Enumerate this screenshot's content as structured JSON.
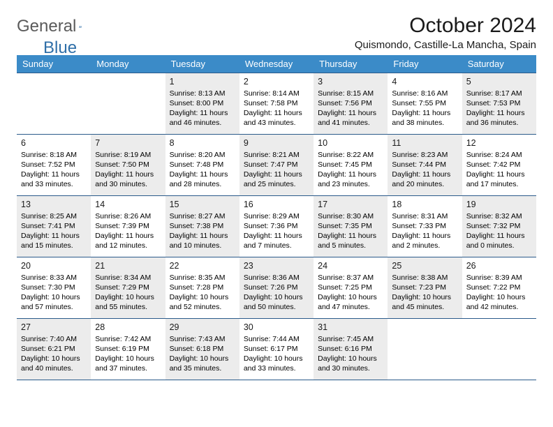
{
  "logo": {
    "part1": "General",
    "part2": "Blue"
  },
  "title": "October 2024",
  "location": "Quismondo, Castille-La Mancha, Spain",
  "colors": {
    "header_bg": "#3b8bc8",
    "header_text": "#ffffff",
    "border": "#2a5a8a",
    "shaded_bg": "#ececec",
    "logo_gray": "#5a5a5a",
    "logo_blue": "#2f6fa8"
  },
  "dayHeaders": [
    "Sunday",
    "Monday",
    "Tuesday",
    "Wednesday",
    "Thursday",
    "Friday",
    "Saturday"
  ],
  "weeks": [
    [
      {
        "num": "",
        "sunrise": "",
        "sunset": "",
        "daylight": "",
        "shaded": false
      },
      {
        "num": "",
        "sunrise": "",
        "sunset": "",
        "daylight": "",
        "shaded": false
      },
      {
        "num": "1",
        "sunrise": "Sunrise: 8:13 AM",
        "sunset": "Sunset: 8:00 PM",
        "daylight": "Daylight: 11 hours and 46 minutes.",
        "shaded": true
      },
      {
        "num": "2",
        "sunrise": "Sunrise: 8:14 AM",
        "sunset": "Sunset: 7:58 PM",
        "daylight": "Daylight: 11 hours and 43 minutes.",
        "shaded": false
      },
      {
        "num": "3",
        "sunrise": "Sunrise: 8:15 AM",
        "sunset": "Sunset: 7:56 PM",
        "daylight": "Daylight: 11 hours and 41 minutes.",
        "shaded": true
      },
      {
        "num": "4",
        "sunrise": "Sunrise: 8:16 AM",
        "sunset": "Sunset: 7:55 PM",
        "daylight": "Daylight: 11 hours and 38 minutes.",
        "shaded": false
      },
      {
        "num": "5",
        "sunrise": "Sunrise: 8:17 AM",
        "sunset": "Sunset: 7:53 PM",
        "daylight": "Daylight: 11 hours and 36 minutes.",
        "shaded": true
      }
    ],
    [
      {
        "num": "6",
        "sunrise": "Sunrise: 8:18 AM",
        "sunset": "Sunset: 7:52 PM",
        "daylight": "Daylight: 11 hours and 33 minutes.",
        "shaded": false
      },
      {
        "num": "7",
        "sunrise": "Sunrise: 8:19 AM",
        "sunset": "Sunset: 7:50 PM",
        "daylight": "Daylight: 11 hours and 30 minutes.",
        "shaded": true
      },
      {
        "num": "8",
        "sunrise": "Sunrise: 8:20 AM",
        "sunset": "Sunset: 7:48 PM",
        "daylight": "Daylight: 11 hours and 28 minutes.",
        "shaded": false
      },
      {
        "num": "9",
        "sunrise": "Sunrise: 8:21 AM",
        "sunset": "Sunset: 7:47 PM",
        "daylight": "Daylight: 11 hours and 25 minutes.",
        "shaded": true
      },
      {
        "num": "10",
        "sunrise": "Sunrise: 8:22 AM",
        "sunset": "Sunset: 7:45 PM",
        "daylight": "Daylight: 11 hours and 23 minutes.",
        "shaded": false
      },
      {
        "num": "11",
        "sunrise": "Sunrise: 8:23 AM",
        "sunset": "Sunset: 7:44 PM",
        "daylight": "Daylight: 11 hours and 20 minutes.",
        "shaded": true
      },
      {
        "num": "12",
        "sunrise": "Sunrise: 8:24 AM",
        "sunset": "Sunset: 7:42 PM",
        "daylight": "Daylight: 11 hours and 17 minutes.",
        "shaded": false
      }
    ],
    [
      {
        "num": "13",
        "sunrise": "Sunrise: 8:25 AM",
        "sunset": "Sunset: 7:41 PM",
        "daylight": "Daylight: 11 hours and 15 minutes.",
        "shaded": true
      },
      {
        "num": "14",
        "sunrise": "Sunrise: 8:26 AM",
        "sunset": "Sunset: 7:39 PM",
        "daylight": "Daylight: 11 hours and 12 minutes.",
        "shaded": false
      },
      {
        "num": "15",
        "sunrise": "Sunrise: 8:27 AM",
        "sunset": "Sunset: 7:38 PM",
        "daylight": "Daylight: 11 hours and 10 minutes.",
        "shaded": true
      },
      {
        "num": "16",
        "sunrise": "Sunrise: 8:29 AM",
        "sunset": "Sunset: 7:36 PM",
        "daylight": "Daylight: 11 hours and 7 minutes.",
        "shaded": false
      },
      {
        "num": "17",
        "sunrise": "Sunrise: 8:30 AM",
        "sunset": "Sunset: 7:35 PM",
        "daylight": "Daylight: 11 hours and 5 minutes.",
        "shaded": true
      },
      {
        "num": "18",
        "sunrise": "Sunrise: 8:31 AM",
        "sunset": "Sunset: 7:33 PM",
        "daylight": "Daylight: 11 hours and 2 minutes.",
        "shaded": false
      },
      {
        "num": "19",
        "sunrise": "Sunrise: 8:32 AM",
        "sunset": "Sunset: 7:32 PM",
        "daylight": "Daylight: 11 hours and 0 minutes.",
        "shaded": true
      }
    ],
    [
      {
        "num": "20",
        "sunrise": "Sunrise: 8:33 AM",
        "sunset": "Sunset: 7:30 PM",
        "daylight": "Daylight: 10 hours and 57 minutes.",
        "shaded": false
      },
      {
        "num": "21",
        "sunrise": "Sunrise: 8:34 AM",
        "sunset": "Sunset: 7:29 PM",
        "daylight": "Daylight: 10 hours and 55 minutes.",
        "shaded": true
      },
      {
        "num": "22",
        "sunrise": "Sunrise: 8:35 AM",
        "sunset": "Sunset: 7:28 PM",
        "daylight": "Daylight: 10 hours and 52 minutes.",
        "shaded": false
      },
      {
        "num": "23",
        "sunrise": "Sunrise: 8:36 AM",
        "sunset": "Sunset: 7:26 PM",
        "daylight": "Daylight: 10 hours and 50 minutes.",
        "shaded": true
      },
      {
        "num": "24",
        "sunrise": "Sunrise: 8:37 AM",
        "sunset": "Sunset: 7:25 PM",
        "daylight": "Daylight: 10 hours and 47 minutes.",
        "shaded": false
      },
      {
        "num": "25",
        "sunrise": "Sunrise: 8:38 AM",
        "sunset": "Sunset: 7:23 PM",
        "daylight": "Daylight: 10 hours and 45 minutes.",
        "shaded": true
      },
      {
        "num": "26",
        "sunrise": "Sunrise: 8:39 AM",
        "sunset": "Sunset: 7:22 PM",
        "daylight": "Daylight: 10 hours and 42 minutes.",
        "shaded": false
      }
    ],
    [
      {
        "num": "27",
        "sunrise": "Sunrise: 7:40 AM",
        "sunset": "Sunset: 6:21 PM",
        "daylight": "Daylight: 10 hours and 40 minutes.",
        "shaded": true
      },
      {
        "num": "28",
        "sunrise": "Sunrise: 7:42 AM",
        "sunset": "Sunset: 6:19 PM",
        "daylight": "Daylight: 10 hours and 37 minutes.",
        "shaded": false
      },
      {
        "num": "29",
        "sunrise": "Sunrise: 7:43 AM",
        "sunset": "Sunset: 6:18 PM",
        "daylight": "Daylight: 10 hours and 35 minutes.",
        "shaded": true
      },
      {
        "num": "30",
        "sunrise": "Sunrise: 7:44 AM",
        "sunset": "Sunset: 6:17 PM",
        "daylight": "Daylight: 10 hours and 33 minutes.",
        "shaded": false
      },
      {
        "num": "31",
        "sunrise": "Sunrise: 7:45 AM",
        "sunset": "Sunset: 6:16 PM",
        "daylight": "Daylight: 10 hours and 30 minutes.",
        "shaded": true
      },
      {
        "num": "",
        "sunrise": "",
        "sunset": "",
        "daylight": "",
        "shaded": false
      },
      {
        "num": "",
        "sunrise": "",
        "sunset": "",
        "daylight": "",
        "shaded": false
      }
    ]
  ]
}
